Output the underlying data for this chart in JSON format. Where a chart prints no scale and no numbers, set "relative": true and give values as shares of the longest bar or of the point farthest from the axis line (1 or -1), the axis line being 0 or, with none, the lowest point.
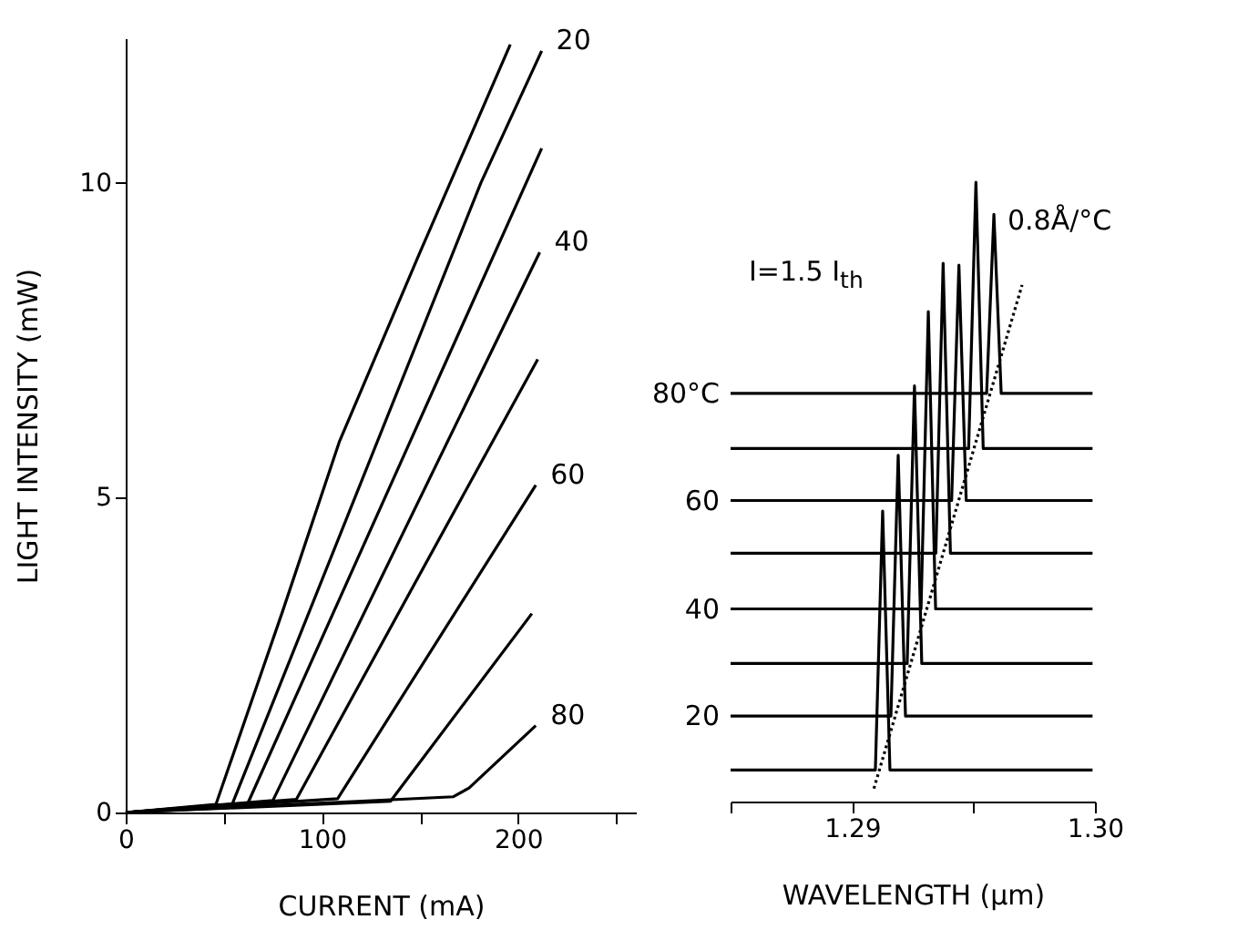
{
  "chart_data": [
    {
      "type": "line",
      "xlabel": "CURRENT (mA)",
      "ylabel": "LIGHT INTENSITY (mW)",
      "xlim": [
        0,
        260
      ],
      "ylim": [
        0,
        12.3
      ],
      "xticks": [
        0,
        {
          "value": 50,
          "label": null
        },
        100,
        {
          "value": 150,
          "label": null
        },
        200,
        {
          "value": 250,
          "label": null
        }
      ],
      "yticks": [
        0,
        5,
        10
      ],
      "grid": false,
      "legend": false,
      "marker": "none",
      "line_style": "solid",
      "series": [
        {
          "color": "#000000",
          "x": [
            0,
            46,
            80,
            109,
            150,
            196
          ],
          "values": [
            0,
            0.13,
            3.2,
            5.9,
            8.9,
            12.2
          ]
        },
        {
          "name": "20",
          "color": "#000000",
          "x": [
            0,
            54,
            181,
            212
          ],
          "values": [
            0,
            0.11,
            10,
            12.1
          ]
        },
        {
          "color": "#000000",
          "x": [
            0,
            62,
            212
          ],
          "values": [
            0,
            0.13,
            10.55
          ]
        },
        {
          "name": "40",
          "color": "#000000",
          "x": [
            0,
            75,
            211
          ],
          "values": [
            0,
            0.19,
            8.9
          ]
        },
        {
          "color": "#000000",
          "x": [
            0,
            87,
            210
          ],
          "values": [
            0,
            0.21,
            7.2
          ]
        },
        {
          "name": "60",
          "color": "#000000",
          "x": [
            0,
            108,
            209
          ],
          "values": [
            0,
            0.22,
            5.2
          ]
        },
        {
          "color": "#000000",
          "x": [
            0,
            135,
            207
          ],
          "values": [
            0,
            0.18,
            3.16
          ]
        },
        {
          "name": "80",
          "color": "#000000",
          "x": [
            0,
            167,
            175,
            209
          ],
          "values": [
            0,
            0.25,
            0.39,
            1.38
          ]
        }
      ]
    },
    {
      "type": "line",
      "relative": true,
      "xlabel": "WAVELENGTH (µm)",
      "xlim": [
        1.285,
        1.3
      ],
      "xticks": [
        {
          "value": 1.285,
          "label": null
        },
        1.29,
        {
          "value": 1.295,
          "label": null
        },
        {
          "value": 1.3,
          "label": "1.30"
        }
      ],
      "grid": false,
      "legend": false,
      "marker": "none",
      "line_style": "solid",
      "annotations": [
        "I=1.5 I$_{th}$",
        "0.8Å/°C"
      ],
      "series": [
        {
          "color": "#000000",
          "x": [
            1.285,
            1.29096,
            1.29126,
            1.29156,
            1.2999
          ],
          "values": [
            0.051,
            0.051,
            0.469,
            0.051,
            0.051
          ]
        },
        {
          "name": "20",
          "color": "#000000",
          "x": [
            1.285,
            1.2916,
            1.2919,
            1.2922,
            1.2999
          ],
          "values": [
            0.138,
            0.138,
            0.559,
            0.138,
            0.138
          ]
        },
        {
          "color": "#000000",
          "x": [
            1.285,
            1.29227,
            1.29257,
            1.29287,
            1.2999
          ],
          "values": [
            0.223,
            0.223,
            0.671,
            0.223,
            0.223
          ]
        },
        {
          "name": "40",
          "color": "#000000",
          "x": [
            1.285,
            1.29284,
            1.29314,
            1.29344,
            1.2999
          ],
          "values": [
            0.311,
            0.311,
            0.791,
            0.311,
            0.311
          ]
        },
        {
          "color": "#000000",
          "x": [
            1.285,
            1.29345,
            1.29375,
            1.29405,
            1.2999
          ],
          "values": [
            0.401,
            0.401,
            0.869,
            0.401,
            0.401
          ]
        },
        {
          "name": "60",
          "color": "#000000",
          "x": [
            1.285,
            1.2941,
            1.2944,
            1.2947,
            1.2999
          ],
          "values": [
            0.486,
            0.486,
            0.866,
            0.486,
            0.486
          ]
        },
        {
          "color": "#000000",
          "x": [
            1.285,
            1.2948,
            1.2951,
            1.2954,
            1.2999
          ],
          "values": [
            0.57,
            0.57,
            1,
            0.57,
            0.57
          ]
        },
        {
          "name": "80°C",
          "color": "#000000",
          "x": [
            1.285,
            1.29554,
            1.29584,
            1.29614,
            1.2999
          ],
          "values": [
            0.659,
            0.659,
            0.948,
            0.659,
            0.659
          ]
        },
        {
          "type": "line",
          "line_style": "dotted",
          "color": "#000000",
          "x": [
            1.2909,
            1.297
          ],
          "values": [
            0.021,
            0.834
          ]
        }
      ]
    }
  ]
}
